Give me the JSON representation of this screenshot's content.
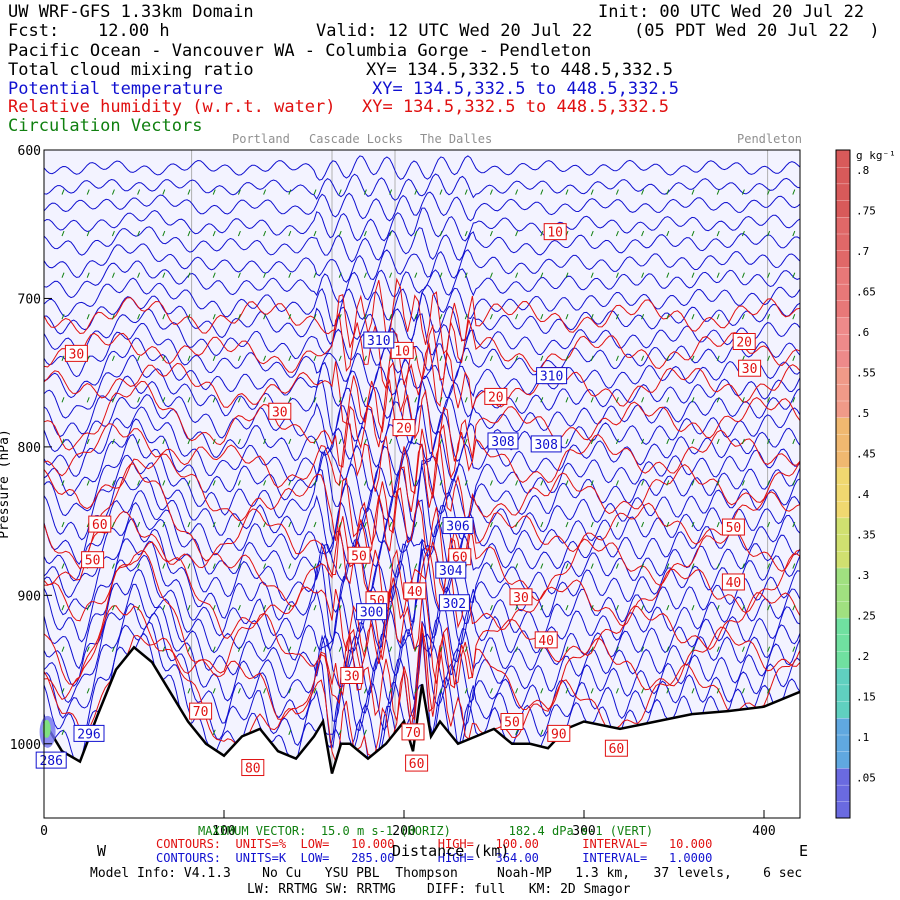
{
  "header": {
    "model": "UW WRF-GFS 1.33km Domain",
    "init": "Init: 00 UTC Wed 20 Jul 22",
    "fcst_label": "Fcst:",
    "fcst": "12.00 h",
    "valid": "Valid: 12 UTC Wed 20 Jul 22",
    "valid_local": "(05 PDT Wed 20 Jul 22  )",
    "region": "Pacific Ocean - Vancouver WA - Columbia Gorge - Pendleton",
    "field1": "Total cloud mixing ratio",
    "xy1": "XY= 134.5,332.5 to 448.5,332.5",
    "field2": "Potential temperature",
    "xy2": "XY= 134.5,332.5 to 448.5,332.5",
    "field3": "Relative humidity (w.r.t. water)",
    "xy3": "XY= 134.5,332.5 to 448.5,332.5",
    "field4": "Circulation Vectors",
    "colors": {
      "theta": "#1010d0",
      "rh": "#e01010",
      "vectors": "#108010",
      "terrain": "#000000"
    }
  },
  "locations": [
    {
      "name": "Portland",
      "km": 82
    },
    {
      "name": "Cascade Locks",
      "km": 160
    },
    {
      "name": "The Dalles",
      "km": 195
    },
    {
      "name": "Pendleton",
      "km": 402
    }
  ],
  "footer": {
    "vector_line": "MAXIMUM VECTOR:  15.0 m s-1 (HORIZ)        182.4 dPa s-1 (VERT)",
    "xlabel": "Distance (km)",
    "west": "W",
    "east": "E",
    "rh_line": "CONTOURS:  UNITS=%  LOW=   10.000      HIGH=   100.00      INTERVAL=   10.000",
    "theta_line": "CONTOURS:  UNITS=K  LOW=   285.00      HIGH=   364.00      INTERVAL=   1.0000",
    "model_info": "Model Info: V4.1.3    No Cu   YSU PBL  Thompson     Noah-MP   1.3 km,   37 levels,    6 sec",
    "model_info2": "LW: RRTMG SW: RRTMG    DIFF: full   KM: 2D Smagor"
  },
  "chart_data": {
    "type": "cross-section",
    "title": "UW WRF-GFS 1.33km Domain",
    "xlabel": "Distance (km)",
    "ylabel": "Pressure (hPa)",
    "xlim": [
      0,
      420
    ],
    "ylim": [
      1050,
      600
    ],
    "x_ticks": [
      0,
      100,
      200,
      300,
      400
    ],
    "y_ticks": [
      600,
      700,
      800,
      900,
      1000
    ],
    "terrain_km": [
      0,
      10,
      20,
      30,
      40,
      50,
      60,
      70,
      80,
      90,
      100,
      110,
      120,
      130,
      140,
      150,
      155,
      160,
      165,
      170,
      180,
      190,
      200,
      205,
      210,
      215,
      220,
      230,
      240,
      250,
      260,
      270,
      280,
      290,
      300,
      320,
      340,
      360,
      380,
      400,
      420
    ],
    "terrain_hpa": [
      985,
      1005,
      1012,
      980,
      950,
      935,
      945,
      965,
      985,
      1000,
      1008,
      995,
      990,
      1005,
      1010,
      995,
      985,
      1020,
      1000,
      1000,
      1010,
      1000,
      985,
      1005,
      960,
      995,
      985,
      1000,
      995,
      990,
      1000,
      1000,
      1003,
      990,
      985,
      990,
      985,
      980,
      978,
      975,
      965
    ],
    "theta_contours": {
      "units": "K",
      "low": 285.0,
      "high": 364.0,
      "interval": 1.0,
      "labels": [
        {
          "value": "286",
          "km": 4,
          "p": 1011
        },
        {
          "value": "296",
          "km": 25,
          "p": 993
        },
        {
          "value": "300",
          "km": 182,
          "p": 911
        },
        {
          "value": "302",
          "km": 228,
          "p": 905
        },
        {
          "value": "304",
          "km": 226,
          "p": 883
        },
        {
          "value": "306",
          "km": 230,
          "p": 853
        },
        {
          "value": "308",
          "km": 255,
          "p": 796
        },
        {
          "value": "308",
          "km": 279,
          "p": 798
        },
        {
          "value": "310",
          "km": 186,
          "p": 728
        },
        {
          "value": "310",
          "km": 282,
          "p": 752
        }
      ]
    },
    "rh_contours": {
      "units": "%",
      "low": 10.0,
      "high": 100.0,
      "interval": 10.0,
      "labels": [
        {
          "value": "10",
          "km": 284,
          "p": 655
        },
        {
          "value": "10",
          "km": 199,
          "p": 735
        },
        {
          "value": "30",
          "km": 18,
          "p": 737
        },
        {
          "value": "30",
          "km": 131,
          "p": 776
        },
        {
          "value": "20",
          "km": 200,
          "p": 787
        },
        {
          "value": "20",
          "km": 251,
          "p": 766
        },
        {
          "value": "10",
          "km": 283,
          "p": 752
        },
        {
          "value": "20",
          "km": 389,
          "p": 729
        },
        {
          "value": "30",
          "km": 392,
          "p": 747
        },
        {
          "value": "60",
          "km": 31,
          "p": 852
        },
        {
          "value": "50",
          "km": 27,
          "p": 876
        },
        {
          "value": "50",
          "km": 175,
          "p": 873
        },
        {
          "value": "60",
          "km": 231,
          "p": 874
        },
        {
          "value": "40",
          "km": 206,
          "p": 897
        },
        {
          "value": "50",
          "km": 185,
          "p": 903
        },
        {
          "value": "30",
          "km": 265,
          "p": 901
        },
        {
          "value": "50",
          "km": 383,
          "p": 854
        },
        {
          "value": "40",
          "km": 383,
          "p": 891
        },
        {
          "value": "40",
          "km": 279,
          "p": 930
        },
        {
          "value": "30",
          "km": 171,
          "p": 954
        },
        {
          "value": "70",
          "km": 87,
          "p": 978
        },
        {
          "value": "50",
          "km": 260,
          "p": 985
        },
        {
          "value": "90",
          "km": 286,
          "p": 993
        },
        {
          "value": "60",
          "km": 318,
          "p": 1003
        },
        {
          "value": "70",
          "km": 205,
          "p": 992
        },
        {
          "value": "60",
          "km": 207,
          "p": 1013
        },
        {
          "value": "80",
          "km": 116,
          "p": 1016
        }
      ]
    },
    "colorbar": {
      "units": "g kg⁻¹",
      "ticks": [
        ".05",
        ".1",
        ".15",
        ".2",
        ".25",
        ".3",
        ".35",
        ".4",
        ".45",
        ".5",
        ".55",
        ".6",
        ".65",
        ".7",
        ".75",
        ".8"
      ]
    },
    "vectors": {
      "max_horizontal": "15.0 m s-1",
      "max_vertical": "182.4 dPa s-1"
    }
  }
}
